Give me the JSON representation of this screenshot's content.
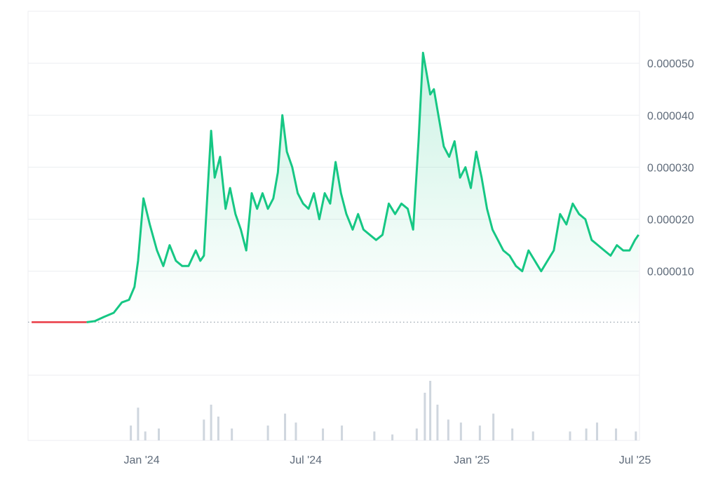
{
  "chart_data": {
    "type": "line",
    "title": "",
    "xlabel": "",
    "ylabel": "",
    "x_ticks": [
      "Jan '24",
      "Jul '24",
      "Jan '25",
      "Jul '25"
    ],
    "y_ticks": [
      "0.000010",
      "0.000020",
      "0.000030",
      "0.000040",
      "0.000050"
    ],
    "y_tick_values": [
      1e-05,
      2e-05,
      3e-05,
      4e-05,
      5e-05
    ],
    "ylim": [
      -1e-05,
      6e-05
    ],
    "baseline": 2e-07,
    "grid": true,
    "colors": {
      "up_line": "#16c784",
      "down_line": "#ea3943",
      "area_fill": "#16c784",
      "grid": "#eceef1",
      "baseline_dots": "#9aa3ad",
      "volume": "#cfd6de",
      "tick_text": "#5f6b7a"
    },
    "series": [
      {
        "x": [
          "2023-09-01",
          "2023-09-15",
          "2023-10-01",
          "2023-10-15",
          "2023-11-01",
          "2023-11-10",
          "2023-11-20",
          "2023-12-01",
          "2023-12-10",
          "2023-12-18",
          "2023-12-24",
          "2023-12-28",
          "2024-01-03",
          "2024-01-10",
          "2024-01-18",
          "2024-01-25",
          "2024-02-01",
          "2024-02-08",
          "2024-02-15",
          "2024-02-22",
          "2024-03-01",
          "2024-03-06",
          "2024-03-10",
          "2024-03-14",
          "2024-03-18",
          "2024-03-22",
          "2024-03-28",
          "2024-04-03",
          "2024-04-08",
          "2024-04-14",
          "2024-04-20",
          "2024-04-26",
          "2024-05-02",
          "2024-05-08",
          "2024-05-14",
          "2024-05-20",
          "2024-05-26",
          "2024-05-31",
          "2024-06-05",
          "2024-06-10",
          "2024-06-16",
          "2024-06-22",
          "2024-06-28",
          "2024-07-04",
          "2024-07-10",
          "2024-07-16",
          "2024-07-22",
          "2024-07-28",
          "2024-08-03",
          "2024-08-09",
          "2024-08-15",
          "2024-08-22",
          "2024-08-28",
          "2024-09-03",
          "2024-09-10",
          "2024-09-17",
          "2024-09-24",
          "2024-10-01",
          "2024-10-08",
          "2024-10-15",
          "2024-10-22",
          "2024-10-28",
          "2024-11-03",
          "2024-11-08",
          "2024-11-12",
          "2024-11-16",
          "2024-11-20",
          "2024-11-25",
          "2024-12-01",
          "2024-12-07",
          "2024-12-13",
          "2024-12-19",
          "2024-12-25",
          "2024-12-31",
          "2025-01-06",
          "2025-01-12",
          "2025-01-18",
          "2025-01-24",
          "2025-01-30",
          "2025-02-05",
          "2025-02-12",
          "2025-02-19",
          "2025-02-26",
          "2025-03-05",
          "2025-03-12",
          "2025-03-19",
          "2025-03-26",
          "2025-04-02",
          "2025-04-09",
          "2025-04-16",
          "2025-04-23",
          "2025-04-30",
          "2025-05-07",
          "2025-05-14",
          "2025-05-21",
          "2025-05-28",
          "2025-06-04",
          "2025-06-11",
          "2025-06-18",
          "2025-06-25",
          "2025-07-01",
          "2025-07-05"
        ],
        "values": [
          2e-07,
          2e-07,
          2e-07,
          2e-07,
          2e-07,
          4e-07,
          1.2e-06,
          2e-06,
          4e-06,
          4.5e-06,
          7e-06,
          1.2e-05,
          2.4e-05,
          1.9e-05,
          1.4e-05,
          1.1e-05,
          1.5e-05,
          1.2e-05,
          1.1e-05,
          1.1e-05,
          1.4e-05,
          1.2e-05,
          1.3e-05,
          2.5e-05,
          3.7e-05,
          2.8e-05,
          3.2e-05,
          2.2e-05,
          2.6e-05,
          2.1e-05,
          1.8e-05,
          1.4e-05,
          2.5e-05,
          2.2e-05,
          2.5e-05,
          2.2e-05,
          2.4e-05,
          2.9e-05,
          4e-05,
          3.3e-05,
          3e-05,
          2.5e-05,
          2.3e-05,
          2.2e-05,
          2.5e-05,
          2e-05,
          2.5e-05,
          2.3e-05,
          3.1e-05,
          2.5e-05,
          2.1e-05,
          1.8e-05,
          2.1e-05,
          1.8e-05,
          1.7e-05,
          1.6e-05,
          1.7e-05,
          2.3e-05,
          2.1e-05,
          2.3e-05,
          2.2e-05,
          1.8e-05,
          3.5e-05,
          5.2e-05,
          4.8e-05,
          4.4e-05,
          4.5e-05,
          4e-05,
          3.4e-05,
          3.2e-05,
          3.5e-05,
          2.8e-05,
          3e-05,
          2.6e-05,
          3.3e-05,
          2.8e-05,
          2.2e-05,
          1.8e-05,
          1.6e-05,
          1.4e-05,
          1.3e-05,
          1.1e-05,
          1e-05,
          1.4e-05,
          1.2e-05,
          1e-05,
          1.2e-05,
          1.4e-05,
          2.1e-05,
          1.9e-05,
          2.3e-05,
          2.1e-05,
          2e-05,
          1.6e-05,
          1.5e-05,
          1.4e-05,
          1.3e-05,
          1.5e-05,
          1.4e-05,
          1.4e-05,
          1.6e-05,
          1.7e-05
        ]
      }
    ],
    "volume": {
      "x": [
        "2023-12-20",
        "2023-12-28",
        "2024-01-05",
        "2024-01-20",
        "2024-03-10",
        "2024-03-18",
        "2024-03-26",
        "2024-04-10",
        "2024-05-20",
        "2024-06-08",
        "2024-06-20",
        "2024-07-20",
        "2024-08-10",
        "2024-09-15",
        "2024-10-05",
        "2024-11-01",
        "2024-11-10",
        "2024-11-16",
        "2024-11-24",
        "2024-12-06",
        "2024-12-20",
        "2025-01-10",
        "2025-01-25",
        "2025-02-15",
        "2025-03-10",
        "2025-04-20",
        "2025-05-08",
        "2025-05-20",
        "2025-06-10",
        "2025-07-02"
      ],
      "values": [
        0.25,
        0.55,
        0.15,
        0.2,
        0.35,
        0.6,
        0.4,
        0.2,
        0.25,
        0.45,
        0.3,
        0.2,
        0.25,
        0.15,
        0.1,
        0.2,
        0.8,
        1.0,
        0.6,
        0.35,
        0.3,
        0.25,
        0.45,
        0.2,
        0.15,
        0.15,
        0.2,
        0.3,
        0.2,
        0.15
      ]
    }
  }
}
